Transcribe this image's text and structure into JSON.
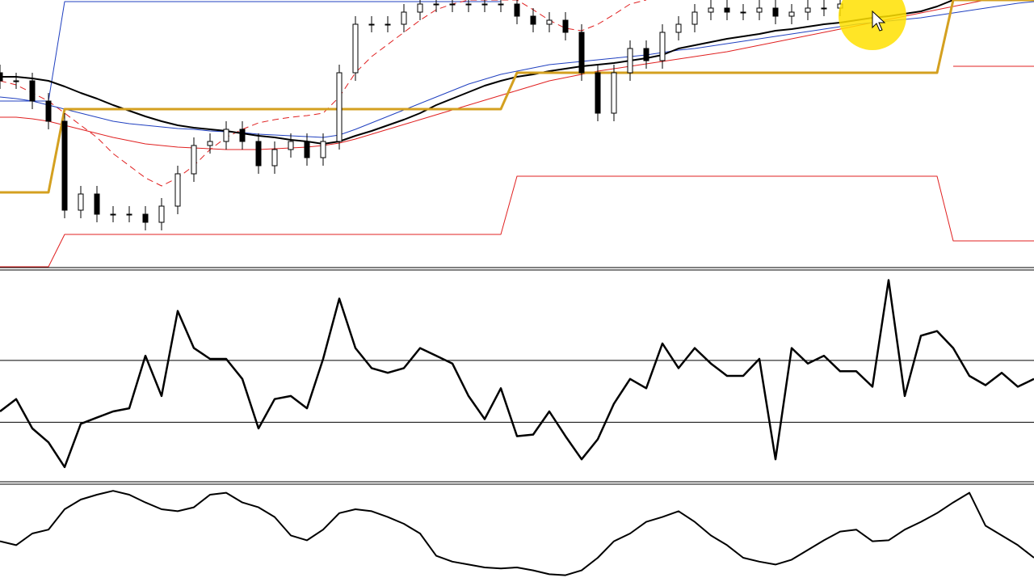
{
  "chart_data": [
    {
      "type": "candlestick",
      "xlim": [
        0,
        64
      ],
      "ylim": [
        0,
        330
      ],
      "open": [
        240,
        230,
        230,
        205,
        180,
        70,
        90,
        65,
        65,
        65,
        55,
        75,
        115,
        150,
        155,
        170,
        155,
        125,
        145,
        155,
        135,
        155,
        240,
        300,
        300,
        300,
        315,
        325,
        325,
        325,
        325,
        325,
        325,
        310,
        300,
        305,
        290,
        240,
        190,
        240,
        270,
        255,
        290,
        300,
        315,
        320,
        315,
        315,
        320,
        310,
        315,
        320,
        320,
        null,
        null,
        null,
        null,
        null,
        null,
        null,
        null,
        null,
        null,
        null,
        null
      ],
      "high": [
        250,
        240,
        240,
        215,
        190,
        100,
        100,
        75,
        75,
        75,
        85,
        125,
        160,
        165,
        180,
        180,
        165,
        155,
        165,
        165,
        165,
        250,
        310,
        310,
        310,
        325,
        330,
        330,
        330,
        330,
        330,
        330,
        330,
        320,
        315,
        315,
        300,
        250,
        250,
        280,
        280,
        300,
        310,
        325,
        330,
        330,
        325,
        330,
        330,
        325,
        330,
        330,
        330,
        null,
        null,
        null,
        null,
        null,
        null,
        null,
        null,
        null,
        null,
        null,
        null
      ],
      "low": [
        220,
        220,
        195,
        170,
        60,
        60,
        55,
        55,
        55,
        45,
        45,
        65,
        105,
        140,
        145,
        145,
        115,
        115,
        135,
        125,
        125,
        145,
        230,
        290,
        290,
        290,
        305,
        315,
        315,
        315,
        315,
        315,
        300,
        290,
        290,
        280,
        230,
        180,
        180,
        230,
        245,
        245,
        280,
        290,
        305,
        305,
        305,
        305,
        300,
        300,
        305,
        310,
        310,
        null,
        null,
        null,
        null,
        null,
        null,
        null,
        null,
        null,
        null,
        null,
        null
      ],
      "close": [
        230,
        230,
        205,
        180,
        70,
        90,
        65,
        65,
        65,
        55,
        75,
        115,
        150,
        155,
        170,
        155,
        125,
        145,
        155,
        135,
        155,
        240,
        300,
        300,
        300,
        315,
        325,
        325,
        325,
        325,
        325,
        325,
        310,
        300,
        305,
        290,
        240,
        190,
        240,
        270,
        255,
        290,
        300,
        315,
        320,
        315,
        315,
        320,
        310,
        315,
        320,
        320,
        325,
        null,
        null,
        null,
        null,
        null,
        null,
        null,
        null,
        null,
        null,
        null,
        null
      ],
      "series": [
        {
          "color": "#2040c0",
          "width": 1,
          "values": [
            205,
            205,
            205,
            205,
            328,
            328,
            328,
            328,
            328,
            328,
            328,
            328,
            328,
            328,
            328,
            328,
            328,
            328,
            328,
            328,
            328,
            328,
            328,
            328,
            328,
            328,
            328,
            328,
            328,
            328,
            328,
            328,
            null,
            null,
            null,
            null,
            null,
            null,
            null,
            null,
            null,
            null,
            null,
            null,
            null,
            null,
            null,
            null,
            null,
            null,
            null,
            null,
            null,
            null,
            null,
            null,
            null,
            null,
            null,
            null,
            null,
            null,
            null,
            null,
            null
          ]
        },
        {
          "color": "#e02020",
          "width": 1,
          "values": [
            0,
            0,
            0,
            0,
            40,
            40,
            40,
            40,
            40,
            40,
            40,
            40,
            40,
            40,
            40,
            40,
            40,
            40,
            40,
            40,
            40,
            40,
            40,
            40,
            40,
            40,
            40,
            40,
            40,
            40,
            40,
            40,
            112,
            112,
            112,
            112,
            112,
            112,
            112,
            112,
            112,
            112,
            112,
            112,
            112,
            112,
            112,
            112,
            112,
            112,
            112,
            112,
            112,
            112,
            112,
            112,
            112,
            112,
            112,
            32,
            32,
            32,
            32,
            32,
            32
          ]
        },
        {
          "color": "#e02020",
          "width": 1,
          "values": [
            null,
            null,
            null,
            null,
            null,
            null,
            null,
            null,
            null,
            null,
            null,
            null,
            null,
            null,
            null,
            null,
            null,
            null,
            null,
            null,
            null,
            null,
            null,
            null,
            null,
            null,
            null,
            null,
            null,
            null,
            null,
            null,
            null,
            null,
            null,
            null,
            null,
            null,
            null,
            null,
            null,
            null,
            null,
            null,
            null,
            null,
            null,
            null,
            null,
            null,
            null,
            null,
            null,
            null,
            null,
            null,
            null,
            null,
            null,
            248,
            248,
            248,
            248,
            248,
            248
          ]
        },
        {
          "color": "#e02020",
          "width": 1,
          "style": "dashed",
          "values": [
            230,
            225,
            215,
            205,
            190,
            175,
            160,
            140,
            125,
            110,
            100,
            110,
            125,
            145,
            160,
            170,
            178,
            182,
            185,
            187,
            190,
            210,
            240,
            260,
            275,
            290,
            305,
            318,
            325,
            330,
            330,
            330,
            330,
            318,
            305,
            295,
            292,
            300,
            312,
            325,
            330,
            null,
            null,
            null,
            null,
            null,
            null,
            null,
            null,
            null,
            null,
            null,
            null,
            null,
            null,
            null,
            null,
            null,
            null,
            null,
            null,
            null,
            null,
            null,
            null
          ]
        },
        {
          "color": "#e02020",
          "width": 1,
          "values": [
            185,
            185,
            183,
            180,
            175,
            170,
            165,
            160,
            156,
            152,
            150,
            148,
            147,
            146,
            145,
            145,
            145,
            146,
            147,
            148,
            150,
            153,
            158,
            164,
            170,
            176,
            182,
            188,
            194,
            200,
            206,
            212,
            218,
            224,
            230,
            234,
            238,
            242,
            245,
            248,
            251,
            254,
            257,
            260,
            263,
            266,
            270,
            274,
            278,
            282,
            286,
            290,
            294,
            298,
            302,
            306,
            310,
            314,
            318,
            322,
            326,
            330,
            null,
            null,
            null
          ]
        },
        {
          "color": "#2040c0",
          "width": 1,
          "values": [
            210,
            208,
            205,
            200,
            195,
            190,
            185,
            180,
            177,
            175,
            173,
            171,
            170,
            168,
            167,
            166,
            164,
            163,
            162,
            161,
            160,
            163,
            170,
            178,
            186,
            194,
            202,
            210,
            218,
            226,
            232,
            238,
            242,
            246,
            250,
            252,
            254,
            256,
            258,
            260,
            262,
            265,
            268,
            270,
            273,
            276,
            279,
            282,
            285,
            288,
            291,
            294,
            297,
            300,
            302,
            304,
            306,
            308,
            311,
            314,
            317,
            320,
            323,
            326,
            328
          ]
        },
        {
          "color": "#000000",
          "width": 2,
          "values": [
            235,
            235,
            233,
            230,
            223,
            215,
            208,
            200,
            193,
            186,
            180,
            175,
            172,
            170,
            168,
            165,
            162,
            160,
            157,
            155,
            152,
            155,
            162,
            168,
            175,
            182,
            190,
            200,
            208,
            216,
            224,
            230,
            235,
            238,
            242,
            245,
            248,
            250,
            252,
            255,
            258,
            262,
            270,
            274,
            278,
            282,
            285,
            288,
            292,
            294,
            297,
            300,
            302,
            305,
            308,
            310,
            313,
            316,
            322,
            330,
            null,
            null,
            null,
            null,
            null
          ]
        },
        {
          "color": "#d4a020",
          "width": 3,
          "values": [
            92,
            92,
            92,
            92,
            195,
            195,
            195,
            195,
            195,
            195,
            195,
            195,
            195,
            195,
            195,
            195,
            195,
            195,
            195,
            195,
            195,
            195,
            195,
            195,
            195,
            195,
            195,
            195,
            195,
            195,
            195,
            195,
            240,
            240,
            240,
            240,
            240,
            240,
            240,
            240,
            240,
            240,
            240,
            240,
            240,
            240,
            240,
            240,
            240,
            240,
            240,
            240,
            240,
            240,
            240,
            240,
            240,
            240,
            240,
            330,
            330,
            330,
            330,
            330,
            330
          ]
        }
      ]
    },
    {
      "type": "line",
      "xlim": [
        0,
        64
      ],
      "ylim": [
        -8,
        128
      ],
      "levels": [
        30,
        70
      ],
      "series": [
        {
          "color": "#000000",
          "width": 2.5,
          "values": [
            37,
            45,
            26,
            17,
            1,
            29,
            33,
            37,
            39,
            73,
            47,
            102,
            78,
            71,
            71,
            58,
            26,
            45,
            47,
            39,
            71,
            110,
            78,
            65,
            62,
            65,
            78,
            73,
            68,
            47,
            32,
            52,
            21,
            22,
            37,
            21,
            6,
            19,
            42,
            58,
            52,
            81,
            65,
            78,
            68,
            60,
            60,
            71,
            6,
            78,
            68,
            73,
            63,
            63,
            53,
            122,
            47,
            86,
            89,
            78,
            60,
            54,
            62,
            53,
            58
          ]
        }
      ]
    },
    {
      "type": "line",
      "xlim": [
        0,
        64
      ],
      "ylim": [
        0,
        100
      ],
      "series": [
        {
          "color": "#000000",
          "width": 2,
          "values": [
            42,
            38,
            50,
            54,
            75,
            85,
            90,
            94,
            90,
            82,
            75,
            73,
            77,
            90,
            92,
            82,
            77,
            67,
            48,
            43,
            54,
            71,
            75,
            73,
            67,
            60,
            50,
            27,
            21,
            18,
            15,
            14,
            15,
            12,
            8,
            7,
            12,
            25,
            42,
            50,
            62,
            67,
            73,
            62,
            48,
            38,
            25,
            21,
            18,
            23,
            33,
            43,
            52,
            54,
            42,
            43,
            54,
            62,
            71,
            82,
            92,
            58,
            48,
            38,
            25
          ]
        }
      ]
    }
  ]
}
